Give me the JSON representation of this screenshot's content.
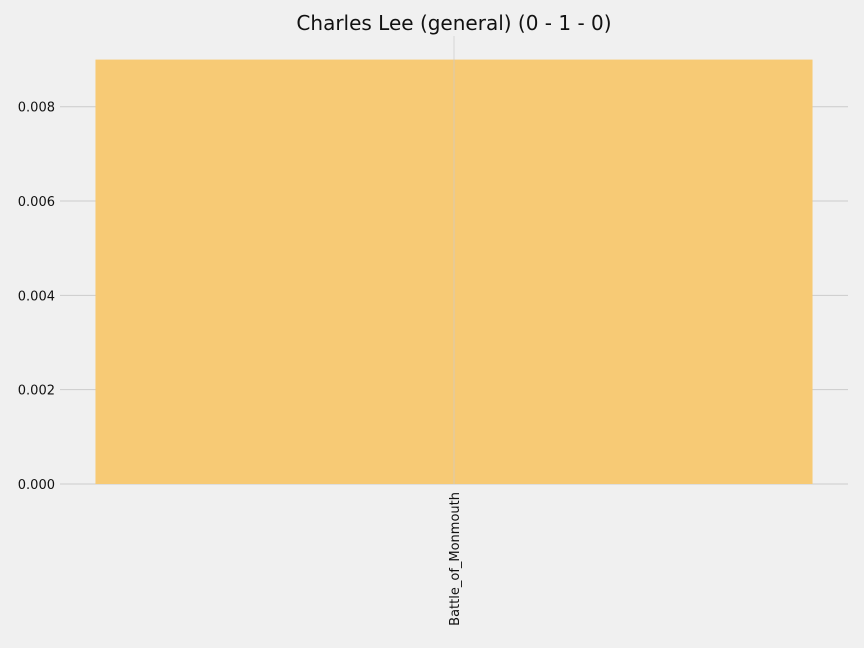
{
  "chart_data": {
    "type": "bar",
    "title": "Charles Lee (general) (0 - 1 - 0)",
    "xlabel": "",
    "ylabel": "",
    "categories": [
      "Battle_of_Monmouth"
    ],
    "values": [
      0.009
    ],
    "ylim": [
      0,
      0.0095
    ],
    "yticks": [
      0.0,
      0.002,
      0.004,
      0.006,
      0.008
    ],
    "ytick_labels": [
      "0.000",
      "0.002",
      "0.004",
      "0.006",
      "0.008"
    ],
    "grid": true,
    "legend": "none",
    "colors": {
      "bar": "#f7ca75",
      "background": "#f0f0f0",
      "grid": "#cbcbcb"
    }
  }
}
